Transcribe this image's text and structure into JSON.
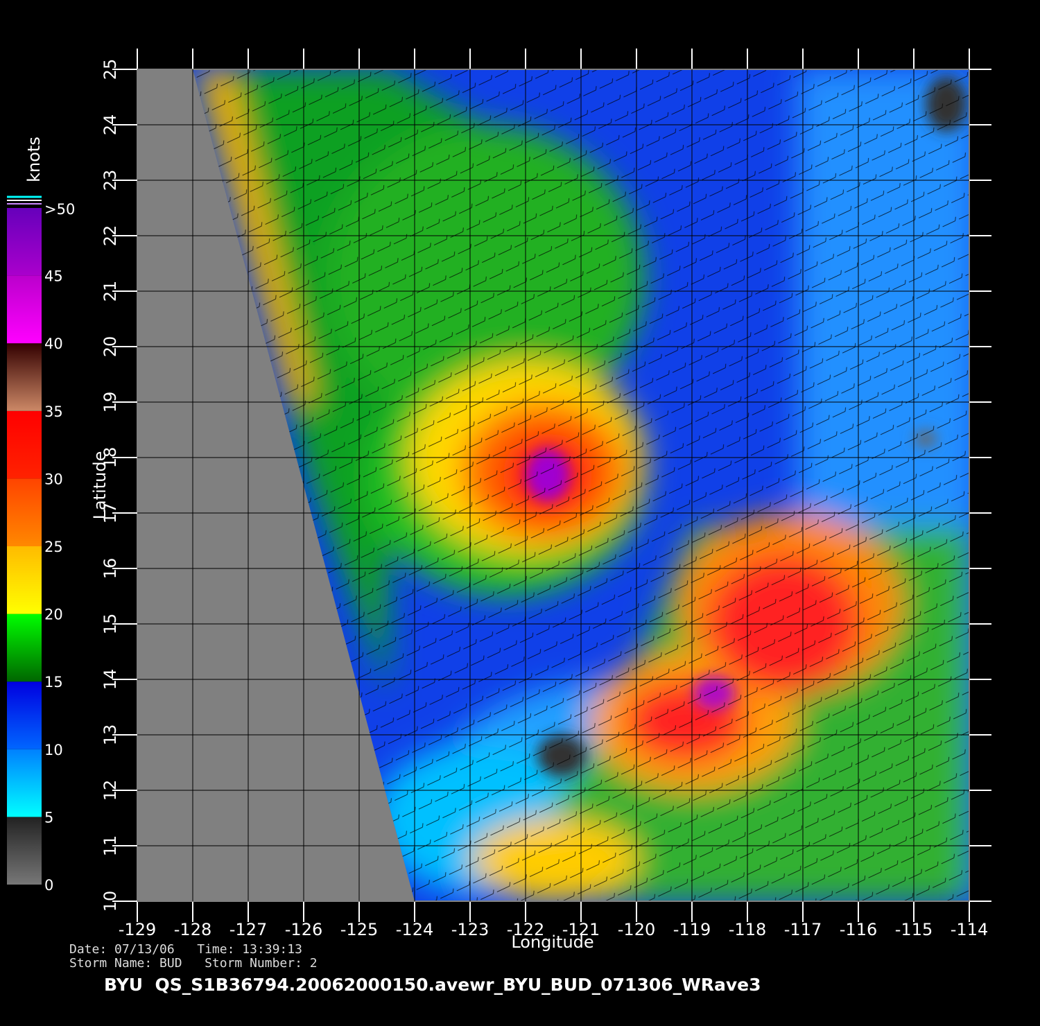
{
  "chart_data": {
    "type": "map",
    "xlabel": "Longitude",
    "ylabel": "Latitude",
    "xlim": [
      -129,
      -114
    ],
    "ylim": [
      10,
      25
    ],
    "xticks": [
      -129,
      -128,
      -127,
      -126,
      -125,
      -124,
      -123,
      -122,
      -121,
      -120,
      -119,
      -118,
      -117,
      -116,
      -115,
      -114
    ],
    "yticks": [
      10,
      11,
      12,
      13,
      14,
      15,
      16,
      17,
      18,
      19,
      20,
      21,
      22,
      23,
      24,
      25
    ],
    "grid": true,
    "colorbar": {
      "label": "knots",
      "lim": [
        0,
        50
      ],
      "ticks": [
        0,
        5,
        10,
        15,
        20,
        25,
        30,
        35,
        40,
        {
          "value": 45,
          "label": "45"
        },
        {
          "value": 50,
          "label": ">50"
        }
      ],
      "colors": [
        [
          "#777777",
          "#222222"
        ],
        [
          "#00ffff",
          "#0080ff"
        ],
        [
          "#0066ff",
          "#0000e0"
        ],
        [
          "#006600",
          "#00ff00"
        ],
        [
          "#ffff00",
          "#ffbb00"
        ],
        [
          "#ff8800",
          "#ff4400"
        ],
        [
          "#ff2200",
          "#ff0000"
        ],
        [
          "#cc8866",
          "#330000"
        ],
        [
          "#ff00ff",
          "#bb00cc"
        ],
        [
          "#aa00cc",
          "#6600bb"
        ]
      ]
    },
    "footer": [
      "Date: 07/13/06   Time: 13:39:13",
      "Storm Name: BUD   Storm Number: 2"
    ],
    "caption": "BYU  QS_S1B36794.20062000150.avewr_BYU_BUD_071306_WRave3"
  }
}
